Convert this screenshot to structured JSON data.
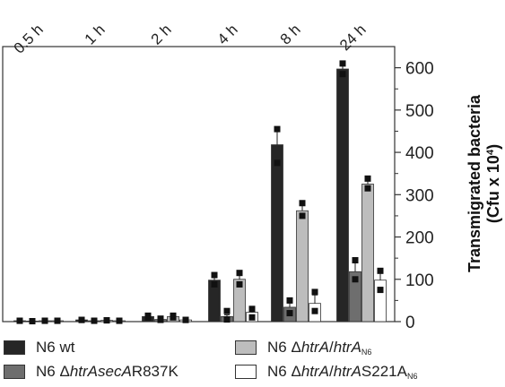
{
  "chart_data": {
    "type": "bar",
    "categories": [
      "0.5 h",
      "1 h",
      "2 h",
      "4 h",
      "8 h",
      "24 h"
    ],
    "ylabel": "Transmigrated bacteria",
    "ylabel_unit": "(Cfu x 10",
    "ylabel_unit_exp": "4",
    "ylabel_unit_close": ")",
    "ylim": [
      0,
      650
    ],
    "yticks": [
      0,
      100,
      200,
      300,
      400,
      500,
      600
    ],
    "series": [
      {
        "name": "N6 wt",
        "color": "#262626",
        "values": [
          2,
          4,
          12,
          98,
          418,
          597
        ],
        "errors": [
          0,
          1,
          2,
          8,
          32,
          12
        ],
        "points": [
          [
            2,
            2
          ],
          [
            4,
            4
          ],
          [
            14,
            10
          ],
          [
            110,
            88
          ],
          [
            455,
            375
          ],
          [
            610,
            585
          ]
        ]
      },
      {
        "name": "N6 ΔhtrAsecAR837K",
        "color": "#6e6e6e",
        "values": [
          1,
          2,
          5,
          12,
          34,
          118
        ],
        "errors": [
          0,
          1,
          1,
          4,
          10,
          25
        ],
        "points": [
          [
            1,
            1
          ],
          [
            2,
            2
          ],
          [
            7,
            4
          ],
          [
            25,
            5
          ],
          [
            50,
            20
          ],
          [
            145,
            100
          ]
        ]
      },
      {
        "name": "N6 ΔhtrA/htrAN6",
        "color": "#bdbdbd",
        "values": [
          2,
          3,
          12,
          100,
          262,
          325
        ],
        "errors": [
          0,
          1,
          2,
          10,
          15,
          12
        ],
        "points": [
          [
            2,
            2
          ],
          [
            3,
            3
          ],
          [
            14,
            10
          ],
          [
            115,
            88
          ],
          [
            280,
            250
          ],
          [
            338,
            315
          ]
        ]
      },
      {
        "name": "N6 ΔhtrA/htrAS221AN6",
        "color": "#ffffff",
        "values": [
          2,
          2,
          4,
          22,
          43,
          98
        ],
        "errors": [
          0,
          0,
          1,
          8,
          20,
          18
        ],
        "points": [
          [
            2,
            2
          ],
          [
            2,
            2
          ],
          [
            4,
            4
          ],
          [
            30,
            10
          ],
          [
            70,
            25
          ],
          [
            120,
            75
          ]
        ]
      }
    ]
  },
  "legend": {
    "item1": {
      "label": "N6 wt"
    },
    "item2": {
      "prefix": "N6 Δ",
      "italic": "htrAsecA",
      "suffix": "R837K"
    },
    "item3": {
      "prefix": "N6 Δ",
      "italic": "htrA",
      "slash": "/",
      "italic2": "htrA",
      "sub": "N6"
    },
    "item4": {
      "prefix": "N6 Δ",
      "italic": "htrA",
      "slash": "/",
      "italic2": "htrA",
      "suffix": "S221A",
      "sub": "N6"
    }
  }
}
